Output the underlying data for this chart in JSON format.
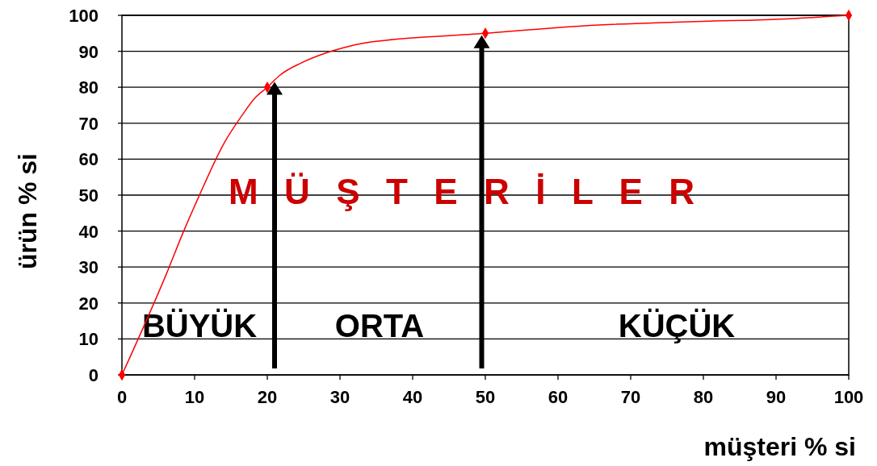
{
  "chart_data": {
    "type": "line",
    "xlabel": "müşteri % si",
    "ylabel": "ürün % si",
    "xlim": [
      0,
      100
    ],
    "ylim": [
      0,
      100
    ],
    "xticks": [
      0,
      10,
      20,
      30,
      40,
      50,
      60,
      70,
      80,
      90,
      100
    ],
    "yticks": [
      0,
      10,
      20,
      30,
      40,
      50,
      60,
      70,
      80,
      90,
      100
    ],
    "grid": "y",
    "ref_lines": [
      {
        "axis": "x",
        "value": 21,
        "color": "#000000"
      },
      {
        "axis": "x",
        "value": 49.5,
        "color": "#000000"
      }
    ],
    "series": [
      {
        "color": "#ff0000",
        "marker": "none",
        "x": [
          0,
          6.1,
          8.5,
          10.6,
          14.1,
          16.5,
          18.3,
          20,
          21.7,
          24.6,
          28.3,
          30.9,
          33.1,
          50,
          55.6,
          61.4,
          80.9,
          87.6,
          100
        ],
        "values": [
          0,
          28,
          40,
          49.7,
          64.6,
          72.1,
          77,
          80,
          83.3,
          86.7,
          89.7,
          91.2,
          92.2,
          95,
          95.9,
          96.8,
          98.4,
          98.7,
          100
        ]
      },
      {
        "type": "scatter",
        "color": "#ff0000",
        "marker": "diamond",
        "x": [
          0,
          20,
          50,
          100
        ],
        "values": [
          0,
          80,
          95,
          100
        ]
      }
    ],
    "annotations": [
      "M Ü Ş T E R İ L E R",
      "BÜYÜK",
      "ORTA",
      "KÜÇÜK"
    ]
  }
}
